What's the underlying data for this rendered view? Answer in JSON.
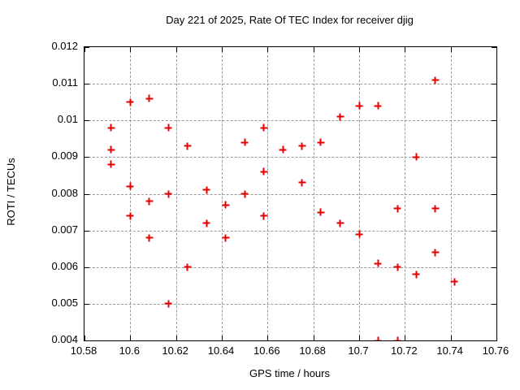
{
  "chart_data": {
    "type": "scatter",
    "title": "Day 221 of 2025, Rate Of TEC Index for receiver djig",
    "xlabel": "GPS time / hours",
    "ylabel": "ROTI / TECUs",
    "xlim": [
      10.58,
      10.76
    ],
    "ylim": [
      0.004,
      0.012
    ],
    "xtick_labels": [
      "10.58",
      "10.6",
      "10.62",
      "10.64",
      "10.66",
      "10.68",
      "10.7",
      "10.72",
      "10.74",
      "10.76"
    ],
    "ytick_labels": [
      "0.004",
      "0.005",
      "0.006",
      "0.007",
      "0.008",
      "0.009",
      "0.01",
      "0.011",
      "0.012"
    ],
    "grid": "dashed",
    "legend_position": "none",
    "marker": "plus",
    "marker_color": "#e60000",
    "axis_color": "#000000",
    "grid_color": "#9a9a9a",
    "background_color": "#ffffff",
    "series": [
      {
        "name": "ROTI",
        "points": [
          [
            10.5917,
            0.0098
          ],
          [
            10.5917,
            0.0092
          ],
          [
            10.5917,
            0.0088
          ],
          [
            10.6,
            0.0105
          ],
          [
            10.6,
            0.0082
          ],
          [
            10.6,
            0.0074
          ],
          [
            10.6083,
            0.0106
          ],
          [
            10.6083,
            0.0078
          ],
          [
            10.6083,
            0.0068
          ],
          [
            10.6167,
            0.0098
          ],
          [
            10.6167,
            0.008
          ],
          [
            10.6167,
            0.005
          ],
          [
            10.625,
            0.0093
          ],
          [
            10.625,
            0.006
          ],
          [
            10.6333,
            0.0081
          ],
          [
            10.6333,
            0.0072
          ],
          [
            10.6417,
            0.0077
          ],
          [
            10.6417,
            0.0068
          ],
          [
            10.65,
            0.0094
          ],
          [
            10.65,
            0.008
          ],
          [
            10.6583,
            0.0098
          ],
          [
            10.6583,
            0.0086
          ],
          [
            10.6583,
            0.0074
          ],
          [
            10.6667,
            0.0092
          ],
          [
            10.675,
            0.0093
          ],
          [
            10.675,
            0.0083
          ],
          [
            10.6833,
            0.0094
          ],
          [
            10.6833,
            0.0075
          ],
          [
            10.6917,
            0.0101
          ],
          [
            10.6917,
            0.0072
          ],
          [
            10.7,
            0.0104
          ],
          [
            10.7,
            0.0069
          ],
          [
            10.7083,
            0.0104
          ],
          [
            10.7083,
            0.0061
          ],
          [
            10.7083,
            0.004
          ],
          [
            10.7167,
            0.0076
          ],
          [
            10.7167,
            0.006
          ],
          [
            10.7167,
            0.004
          ],
          [
            10.725,
            0.009
          ],
          [
            10.725,
            0.0058
          ],
          [
            10.7333,
            0.0111
          ],
          [
            10.7333,
            0.0076
          ],
          [
            10.7333,
            0.0064
          ],
          [
            10.7417,
            0.0056
          ]
        ]
      }
    ]
  }
}
